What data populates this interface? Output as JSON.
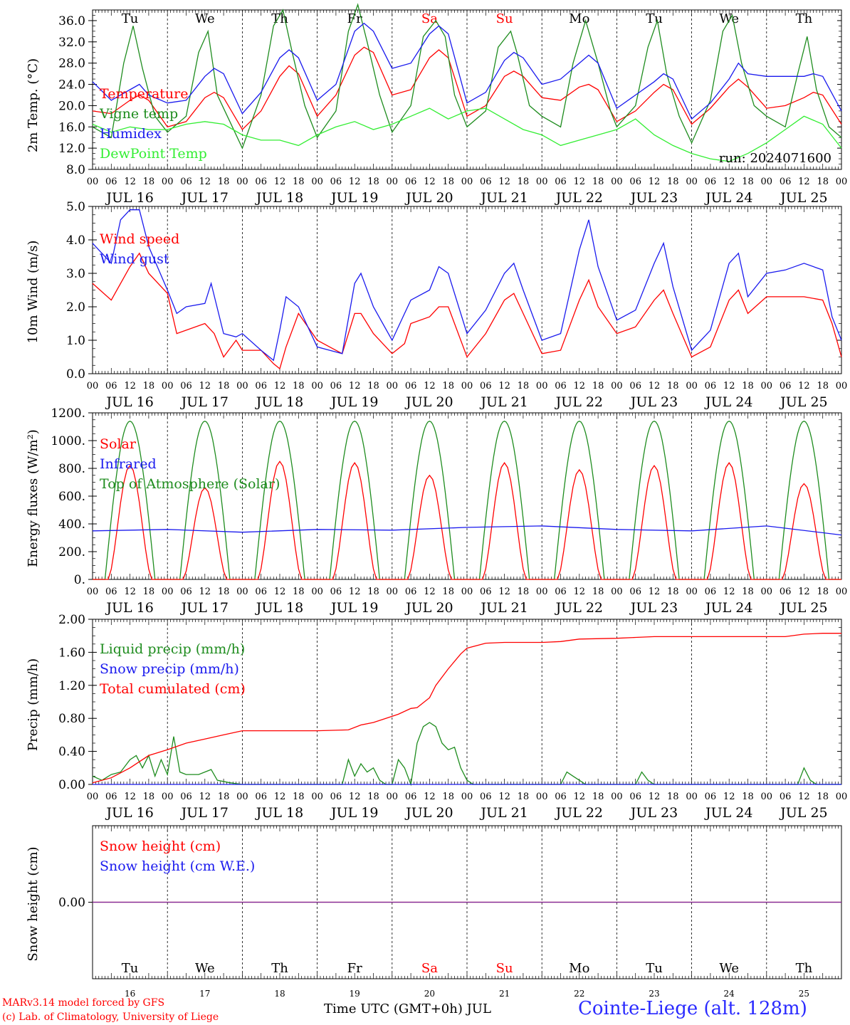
{
  "chart_data": [
    {
      "type": "line",
      "ylabel": "2m Temp. (°C)",
      "ylim": [
        8,
        38
      ],
      "yticks": [
        "8.0",
        "12.0",
        "16.0",
        "20.0",
        "24.0",
        "28.0",
        "32.0",
        "36.0"
      ],
      "xlim_hours": [
        0,
        240
      ],
      "annotation": "run: 2024071600",
      "series": [
        {
          "name": "Temperature",
          "color": "#ff0000",
          "x": [
            0,
            6,
            12,
            15,
            18,
            24,
            30,
            36,
            39,
            42,
            48,
            54,
            60,
            63,
            66,
            72,
            78,
            84,
            87,
            90,
            96,
            102,
            108,
            111,
            114,
            120,
            126,
            132,
            135,
            138,
            144,
            150,
            156,
            159,
            162,
            168,
            174,
            180,
            183,
            186,
            192,
            198,
            204,
            207,
            210,
            216,
            222,
            228,
            231,
            234,
            240
          ],
          "y": [
            19,
            18.5,
            21,
            22,
            21,
            16,
            17,
            21.5,
            22.5,
            21.5,
            15.5,
            19,
            25.5,
            27.5,
            26,
            18,
            22,
            29.5,
            31,
            30,
            22,
            23,
            29,
            30.5,
            29,
            18,
            20,
            25.5,
            26.5,
            25.5,
            21.5,
            21,
            23.5,
            24,
            23,
            17,
            19,
            22.5,
            24,
            23,
            16.5,
            19.5,
            23.5,
            25,
            23.5,
            19.5,
            20,
            21.5,
            22.5,
            22,
            16.5
          ]
        },
        {
          "name": "Vigne temp",
          "color": "#1e8c1e",
          "x": [
            0,
            6,
            10,
            13,
            16,
            20,
            24,
            30,
            34,
            37,
            40,
            44,
            48,
            54,
            58,
            61,
            64,
            68,
            72,
            78,
            82,
            85,
            88,
            92,
            96,
            102,
            106,
            110,
            113,
            116,
            120,
            126,
            130,
            134,
            136,
            140,
            144,
            150,
            154,
            158,
            162,
            166,
            168,
            174,
            178,
            181,
            184,
            188,
            192,
            198,
            202,
            205,
            208,
            212,
            216,
            222,
            226,
            229,
            232,
            236,
            240
          ],
          "y": [
            16,
            14,
            28,
            35,
            27,
            18,
            15,
            18,
            30,
            34,
            22,
            17,
            12,
            22,
            35,
            38,
            30,
            20,
            14,
            19,
            34,
            39,
            32,
            22,
            15,
            20,
            33,
            36,
            33,
            22,
            16,
            19,
            31,
            34,
            30,
            20,
            18,
            16,
            28,
            36,
            28,
            19,
            16,
            20,
            31,
            36,
            26,
            18,
            13,
            21,
            34,
            37,
            28,
            20,
            18,
            16,
            26,
            33,
            23,
            16,
            14
          ]
        },
        {
          "name": "Humidex",
          "color": "#1a1aee",
          "x": [
            0,
            6,
            12,
            15,
            18,
            24,
            30,
            36,
            39,
            42,
            48,
            54,
            60,
            63,
            66,
            72,
            78,
            84,
            87,
            90,
            96,
            102,
            108,
            111,
            114,
            120,
            126,
            132,
            135,
            138,
            144,
            150,
            156,
            159,
            162,
            168,
            174,
            180,
            183,
            186,
            192,
            198,
            204,
            207,
            210,
            216,
            222,
            228,
            231,
            234,
            240
          ],
          "y": [
            24.5,
            21,
            23,
            24,
            22,
            20.5,
            21,
            25.5,
            27,
            26,
            18.5,
            22.5,
            29,
            30.5,
            29,
            21,
            24,
            34,
            35.5,
            34,
            27,
            28,
            33.5,
            35,
            33.5,
            20.5,
            22.5,
            28.5,
            30,
            29,
            24,
            25,
            28,
            29.5,
            28,
            19.5,
            22,
            24.5,
            26,
            25,
            17.5,
            20.5,
            25,
            28,
            26,
            25.5,
            25.5,
            25.5,
            26,
            25.5,
            19
          ]
        },
        {
          "name": "DewPoint Temp",
          "color": "#33ee33",
          "x": [
            0,
            6,
            12,
            18,
            24,
            30,
            36,
            42,
            48,
            54,
            60,
            66,
            72,
            78,
            84,
            90,
            96,
            102,
            108,
            114,
            120,
            126,
            132,
            138,
            144,
            150,
            156,
            162,
            168,
            174,
            180,
            186,
            192,
            198,
            204,
            210,
            216,
            222,
            228,
            234,
            240
          ],
          "y": [
            16.5,
            15,
            16,
            15.5,
            15.5,
            16.5,
            17,
            16.5,
            14.5,
            13.5,
            13.5,
            12.5,
            14.5,
            16,
            17,
            15.5,
            16.5,
            18,
            19.5,
            17.5,
            19,
            19.5,
            17.5,
            15.5,
            14.5,
            12.5,
            13.5,
            14.5,
            15.5,
            17.5,
            14.5,
            12.5,
            11,
            10,
            9.5,
            11,
            13,
            15.5,
            18,
            16.5,
            12
          ]
        }
      ]
    },
    {
      "type": "line",
      "ylabel": "10m Wind (m/s)",
      "ylim": [
        0,
        5
      ],
      "yticks": [
        "0.0",
        "1.0",
        "2.0",
        "3.0",
        "4.0",
        "5.0"
      ],
      "xlim_hours": [
        0,
        240
      ],
      "series": [
        {
          "name": "Wind speed",
          "color": "#ff0000",
          "x": [
            0,
            6,
            12,
            15,
            18,
            24,
            27,
            30,
            36,
            39,
            42,
            46,
            48,
            54,
            58,
            60,
            62,
            66,
            72,
            76,
            80,
            84,
            86,
            90,
            96,
            100,
            102,
            108,
            111,
            114,
            120,
            126,
            132,
            135,
            138,
            144,
            150,
            156,
            159,
            162,
            168,
            174,
            180,
            183,
            186,
            192,
            198,
            204,
            207,
            210,
            216,
            222,
            228,
            234,
            237,
            240
          ],
          "y": [
            2.7,
            2.2,
            3.2,
            3.6,
            3.0,
            2.4,
            1.2,
            1.3,
            1.5,
            1.2,
            0.5,
            1.0,
            0.7,
            0.7,
            0.3,
            0.15,
            0.8,
            1.8,
            1.0,
            0.8,
            0.6,
            1.8,
            1.8,
            1.2,
            0.6,
            0.9,
            1.5,
            1.7,
            2.0,
            2.0,
            0.5,
            1.2,
            2.2,
            2.4,
            1.8,
            0.6,
            0.7,
            2.2,
            2.8,
            2.0,
            1.2,
            1.4,
            2.2,
            2.5,
            1.8,
            0.5,
            0.8,
            2.2,
            2.5,
            1.8,
            2.3,
            2.3,
            2.3,
            2.2,
            1.5,
            0.5
          ]
        },
        {
          "name": "Wind gust",
          "color": "#1a1aee",
          "x": [
            0,
            6,
            9,
            12,
            15,
            18,
            24,
            27,
            30,
            36,
            38,
            42,
            46,
            48,
            54,
            58,
            60,
            62,
            66,
            72,
            76,
            80,
            84,
            86,
            90,
            96,
            100,
            102,
            108,
            111,
            114,
            120,
            126,
            132,
            135,
            138,
            144,
            150,
            156,
            159,
            162,
            168,
            174,
            180,
            183,
            186,
            192,
            198,
            204,
            207,
            210,
            216,
            222,
            228,
            234,
            237,
            240
          ],
          "y": [
            3.9,
            3.3,
            4.6,
            4.9,
            4.9,
            3.8,
            2.5,
            1.8,
            2.0,
            2.1,
            2.7,
            1.2,
            1.1,
            1.2,
            0.7,
            0.4,
            1.3,
            2.3,
            2.0,
            0.8,
            0.7,
            0.6,
            2.7,
            3.0,
            2.0,
            1.0,
            1.8,
            2.2,
            2.5,
            3.2,
            3.0,
            1.2,
            1.9,
            3.0,
            3.3,
            2.5,
            1.0,
            1.2,
            3.7,
            4.6,
            3.2,
            1.6,
            1.9,
            3.3,
            3.9,
            2.6,
            0.7,
            1.3,
            3.3,
            3.6,
            2.3,
            3.0,
            3.1,
            3.3,
            3.1,
            1.7,
            1.0
          ]
        }
      ]
    },
    {
      "type": "line",
      "ylabel": "Energy fluxes (W/m²)",
      "ylim": [
        0,
        1200
      ],
      "yticks": [
        "0.",
        "200.",
        "400.",
        "600.",
        "800.",
        "1000.",
        "1200."
      ],
      "xlim_hours": [
        0,
        240
      ],
      "series": [
        {
          "name": "Solar",
          "color": "#ff0000",
          "daily_peaks": [
            820,
            660,
            850,
            840,
            750,
            840,
            790,
            820,
            840,
            690
          ],
          "note": "diurnal cycle sunrise 04 UTC, sunset 20 UTC; cloudy dips on several days"
        },
        {
          "name": "Infrared",
          "color": "#1a1aee",
          "x": [
            0,
            24,
            48,
            72,
            96,
            120,
            144,
            168,
            192,
            216,
            240
          ],
          "y": [
            350,
            360,
            340,
            360,
            355,
            375,
            385,
            360,
            350,
            385,
            320
          ]
        },
        {
          "name": "Top of Atmosphere (Solar)",
          "color": "#1e8c1e",
          "daily_peak": 1140,
          "note": "sinusoid between 04 and 20 UTC each day"
        }
      ]
    },
    {
      "type": "line",
      "ylabel": "Precip (mm/h)",
      "ylim": [
        0,
        2
      ],
      "yticks": [
        "0.00",
        "0.40",
        "0.80",
        "1.20",
        "1.60",
        "2.00"
      ],
      "xlim_hours": [
        0,
        240
      ],
      "series": [
        {
          "name": "Liquid precip (mm/h)",
          "color": "#1e8c1e",
          "x": [
            0,
            3,
            6,
            9,
            12,
            14,
            16,
            18,
            20,
            22,
            24,
            26,
            28,
            30,
            34,
            38,
            40,
            44,
            48,
            80,
            82,
            84,
            86,
            88,
            90,
            92,
            94,
            96,
            98,
            100,
            102,
            104,
            106,
            108,
            110,
            112,
            114,
            116,
            118,
            120,
            122,
            124,
            150,
            152,
            154,
            156,
            158,
            174,
            176,
            178,
            180,
            226,
            228,
            230,
            232,
            240
          ],
          "y": [
            0.1,
            0.05,
            0.12,
            0.15,
            0.3,
            0.35,
            0.2,
            0.35,
            0.1,
            0.3,
            0.12,
            0.58,
            0.15,
            0.12,
            0.12,
            0.18,
            0.05,
            0.02,
            0,
            0,
            0.3,
            0.1,
            0.25,
            0.15,
            0.2,
            0.05,
            0,
            0,
            0.3,
            0.2,
            0,
            0.5,
            0.7,
            0.75,
            0.7,
            0.5,
            0.42,
            0.45,
            0.2,
            0.05,
            0,
            0,
            0,
            0.15,
            0.1,
            0.05,
            0,
            0,
            0.15,
            0.05,
            0,
            0,
            0.2,
            0.05,
            0,
            0
          ]
        },
        {
          "name": "Snow precip (mm/h)",
          "color": "#1a1aee",
          "x": [
            0,
            240
          ],
          "y": [
            0,
            0
          ]
        },
        {
          "name": "Total cumulated (cm)",
          "color": "#ff0000",
          "x": [
            0,
            6,
            12,
            18,
            24,
            30,
            36,
            42,
            48,
            60,
            72,
            82,
            86,
            90,
            94,
            98,
            102,
            104,
            108,
            110,
            114,
            118,
            120,
            126,
            132,
            144,
            150,
            156,
            168,
            174,
            180,
            192,
            204,
            216,
            222,
            228,
            234,
            240
          ],
          "y": [
            0.02,
            0.08,
            0.2,
            0.35,
            0.42,
            0.5,
            0.55,
            0.6,
            0.65,
            0.65,
            0.65,
            0.66,
            0.72,
            0.75,
            0.8,
            0.85,
            0.92,
            0.93,
            1.05,
            1.2,
            1.4,
            1.58,
            1.65,
            1.71,
            1.72,
            1.72,
            1.73,
            1.76,
            1.77,
            1.78,
            1.79,
            1.79,
            1.79,
            1.79,
            1.79,
            1.82,
            1.83,
            1.83
          ]
        }
      ]
    },
    {
      "type": "line",
      "ylabel": "Snow height (cm)",
      "ylim": [
        -1,
        1
      ],
      "yticks": [
        "0.00"
      ],
      "xlim_hours": [
        0,
        240
      ],
      "series": [
        {
          "name": "Snow height (cm)",
          "color": "#ff0000",
          "x": [
            0,
            240
          ],
          "y": [
            0,
            0
          ]
        },
        {
          "name": "Snow height (cm W.E.)",
          "color": "#1a1aee",
          "x": [
            0,
            240
          ],
          "y": [
            0,
            0
          ]
        }
      ]
    }
  ],
  "days": {
    "weekdays": [
      "Tu",
      "We",
      "Th",
      "Fr",
      "Sa",
      "Su",
      "Mo",
      "Tu",
      "We",
      "Th"
    ],
    "weekend_color": "#ff0000",
    "normal_color": "#000000",
    "dates": [
      "JUL 16",
      "JUL 17",
      "JUL 18",
      "JUL 19",
      "JUL 20",
      "JUL 21",
      "JUL 22",
      "JUL 23",
      "JUL 24",
      "JUL 25"
    ],
    "day_numbers": [
      "16",
      "17",
      "18",
      "19",
      "20",
      "21",
      "22",
      "23",
      "24",
      "25"
    ],
    "hour_labels": [
      "00",
      "06",
      "12",
      "18"
    ],
    "end_label": "00"
  },
  "footer": {
    "credit1": "MARv3.14 model forced by GFS",
    "credit2": "(c) Lab. of Climatology, University of Liege",
    "xtitle": "Time UTC (GMT+0h) JUL",
    "station": "Cointe-Liege (alt. 128m)"
  }
}
